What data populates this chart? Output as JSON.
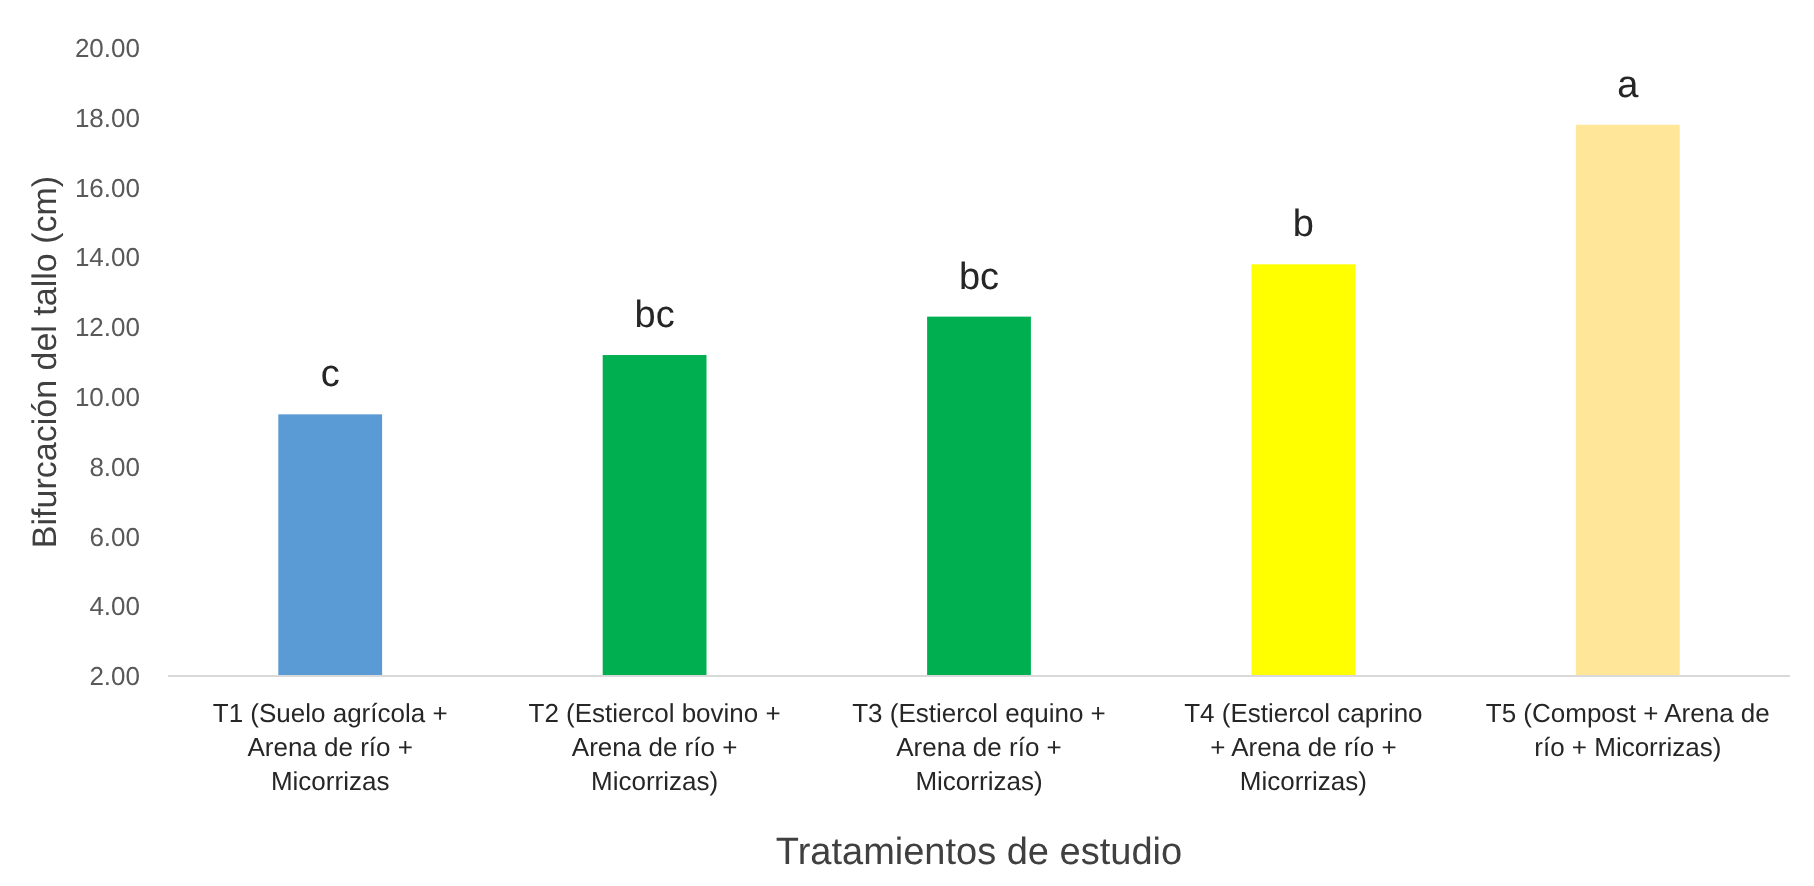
{
  "chart_data": {
    "type": "bar",
    "xlabel": "Tratamientos de estudio",
    "ylabel": "Bifurcación del tallo (cm)",
    "categories": [
      "T1 (Suelo agrícola + Arena de río + Micorrizas",
      "T2 (Estiercol bovino + Arena de río + Micorrizas)",
      "T3 (Estiercol equino + Arena de río + Micorrizas)",
      "T4 (Estiercol caprino + Arena de río + Micorrizas)",
      "T5 (Compost + Arena de río + Micorrizas)"
    ],
    "values": [
      9.5,
      11.2,
      12.3,
      13.8,
      17.8
    ],
    "colors": [
      "#5b9bd5",
      "#00b050",
      "#00b050",
      "#ffff00",
      "#ffe699"
    ],
    "ylim": [
      2,
      20
    ],
    "yticks": [
      {
        "value": 2,
        "label": "2.00"
      },
      {
        "value": 4,
        "label": "4.00"
      },
      {
        "value": 6,
        "label": "6.00"
      },
      {
        "value": 8,
        "label": "8.00"
      },
      {
        "value": 10,
        "label": "10.00"
      },
      {
        "value": 12,
        "label": "12.00"
      },
      {
        "value": 14,
        "label": "14.00"
      },
      {
        "value": 16,
        "label": "16.00"
      },
      {
        "value": 18,
        "label": "18.00"
      },
      {
        "value": 20,
        "label": "20.00"
      }
    ],
    "annotations": [
      {
        "text": "c",
        "x": "T1 (Suelo agrícola + Arena de río + Micorrizas",
        "y": 9.5
      },
      {
        "text": "bc",
        "x": "T2 (Estiercol bovino + Arena de río + Micorrizas)",
        "y": 11.2
      },
      {
        "text": "bc",
        "x": "T3 (Estiercol equino + Arena de río + Micorrizas)",
        "y": 12.3
      },
      {
        "text": "b",
        "x": "T4 (Estiercol caprino + Arena de río + Micorrizas)",
        "y": 13.8
      },
      {
        "text": "a",
        "x": "T5 (Compost + Arena de río + Micorrizas)",
        "y": 17.8
      }
    ]
  }
}
